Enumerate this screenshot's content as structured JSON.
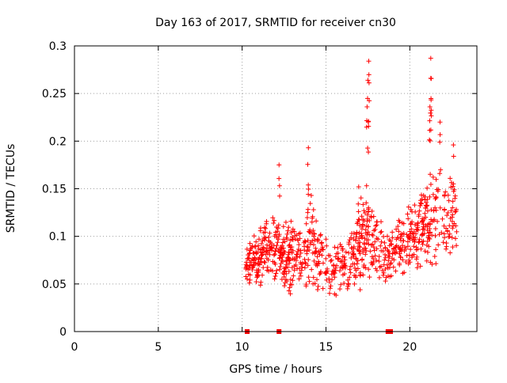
{
  "chart_data": {
    "type": "scatter",
    "title": "Day 163 of 2017, SRMTID for receiver cn30",
    "xlabel": "GPS time / hours",
    "ylabel": "SRMTID / TECUs",
    "xlim": [
      0,
      24
    ],
    "ylim": [
      0,
      0.3
    ],
    "x_ticks": [
      0,
      5,
      10,
      15,
      20
    ],
    "x_tick_labels": [
      "0",
      "5",
      "10",
      "15",
      "20"
    ],
    "y_ticks": [
      0,
      0.05,
      0.1,
      0.15,
      0.2,
      0.25,
      0.3
    ],
    "y_tick_labels": [
      "0",
      "0.05",
      "0.1",
      "0.15",
      "0.2",
      "0.25",
      "0.3"
    ],
    "grid": true,
    "marker": "+",
    "series_color": "#ff0000",
    "grid_color": "#a0a0a0",
    "baseline_marks_x": [
      10.3,
      12.2,
      18.7,
      18.85
    ],
    "data_range_x": [
      10.2,
      22.8
    ],
    "peaks": [
      {
        "x": 17.55,
        "y": 0.284
      },
      {
        "x": 17.5,
        "y": 0.264
      },
      {
        "x": 17.45,
        "y": 0.236
      },
      {
        "x": 21.25,
        "y": 0.287
      },
      {
        "x": 21.25,
        "y": 0.266
      },
      {
        "x": 21.2,
        "y": 0.236
      },
      {
        "x": 21.8,
        "y": 0.22
      },
      {
        "x": 13.95,
        "y": 0.193
      },
      {
        "x": 12.2,
        "y": 0.175
      },
      {
        "x": 16.95,
        "y": 0.152
      },
      {
        "x": 22.6,
        "y": 0.196
      }
    ],
    "envelope": [
      {
        "x": 10.5,
        "low": 0.045,
        "high": 0.1
      },
      {
        "x": 11.0,
        "low": 0.045,
        "high": 0.11
      },
      {
        "x": 11.5,
        "low": 0.05,
        "high": 0.13
      },
      {
        "x": 12.0,
        "low": 0.045,
        "high": 0.12
      },
      {
        "x": 12.5,
        "low": 0.04,
        "high": 0.12
      },
      {
        "x": 13.0,
        "low": 0.035,
        "high": 0.12
      },
      {
        "x": 13.5,
        "low": 0.035,
        "high": 0.125
      },
      {
        "x": 14.0,
        "low": 0.04,
        "high": 0.15
      },
      {
        "x": 14.5,
        "low": 0.035,
        "high": 0.13
      },
      {
        "x": 15.0,
        "low": 0.035,
        "high": 0.1
      },
      {
        "x": 15.5,
        "low": 0.03,
        "high": 0.1
      },
      {
        "x": 16.0,
        "low": 0.035,
        "high": 0.1
      },
      {
        "x": 16.5,
        "low": 0.04,
        "high": 0.11
      },
      {
        "x": 17.0,
        "low": 0.04,
        "high": 0.14
      },
      {
        "x": 17.5,
        "low": 0.045,
        "high": 0.16
      },
      {
        "x": 18.0,
        "low": 0.045,
        "high": 0.14
      },
      {
        "x": 18.5,
        "low": 0.05,
        "high": 0.1
      },
      {
        "x": 19.0,
        "low": 0.05,
        "high": 0.11
      },
      {
        "x": 19.5,
        "low": 0.05,
        "high": 0.13
      },
      {
        "x": 20.0,
        "low": 0.06,
        "high": 0.14
      },
      {
        "x": 20.5,
        "low": 0.06,
        "high": 0.15
      },
      {
        "x": 21.0,
        "low": 0.07,
        "high": 0.17
      },
      {
        "x": 21.5,
        "low": 0.06,
        "high": 0.18
      },
      {
        "x": 22.0,
        "low": 0.05,
        "high": 0.18
      },
      {
        "x": 22.5,
        "low": 0.06,
        "high": 0.17
      }
    ]
  }
}
